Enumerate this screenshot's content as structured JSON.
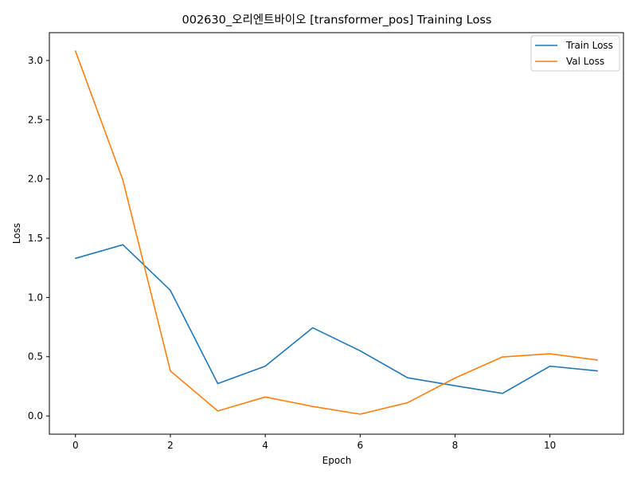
{
  "chart_data": {
    "type": "line",
    "title": "002630_오리엔트바이오 [transformer_pos] Training Loss",
    "xlabel": "Epoch",
    "ylabel": "Loss",
    "xlim": [
      -0.55,
      11.55
    ],
    "ylim": [
      -0.154,
      3.235
    ],
    "xticks": [
      0,
      2,
      4,
      6,
      8,
      10
    ],
    "xtick_labels": [
      "0",
      "2",
      "4",
      "6",
      "8",
      "10"
    ],
    "yticks": [
      0.0,
      0.5,
      1.0,
      1.5,
      2.0,
      2.5,
      3.0
    ],
    "ytick_labels": [
      "0.0",
      "0.5",
      "1.0",
      "1.5",
      "2.0",
      "2.5",
      "3.0"
    ],
    "grid": false,
    "legend_position": "top-right",
    "x": [
      0,
      1,
      2,
      3,
      4,
      5,
      6,
      7,
      8,
      9,
      10,
      11
    ],
    "series": [
      {
        "name": "Train Loss",
        "color": "#1f77b4",
        "values": [
          1.33,
          1.445,
          1.06,
          0.273,
          0.42,
          0.744,
          0.55,
          0.322,
          0.255,
          0.19,
          0.42,
          0.38
        ]
      },
      {
        "name": "Val Loss",
        "color": "#ff7f0e",
        "values": [
          3.08,
          1.99,
          0.38,
          0.042,
          0.16,
          0.08,
          0.015,
          0.112,
          0.32,
          0.498,
          0.525,
          0.472
        ]
      }
    ]
  }
}
